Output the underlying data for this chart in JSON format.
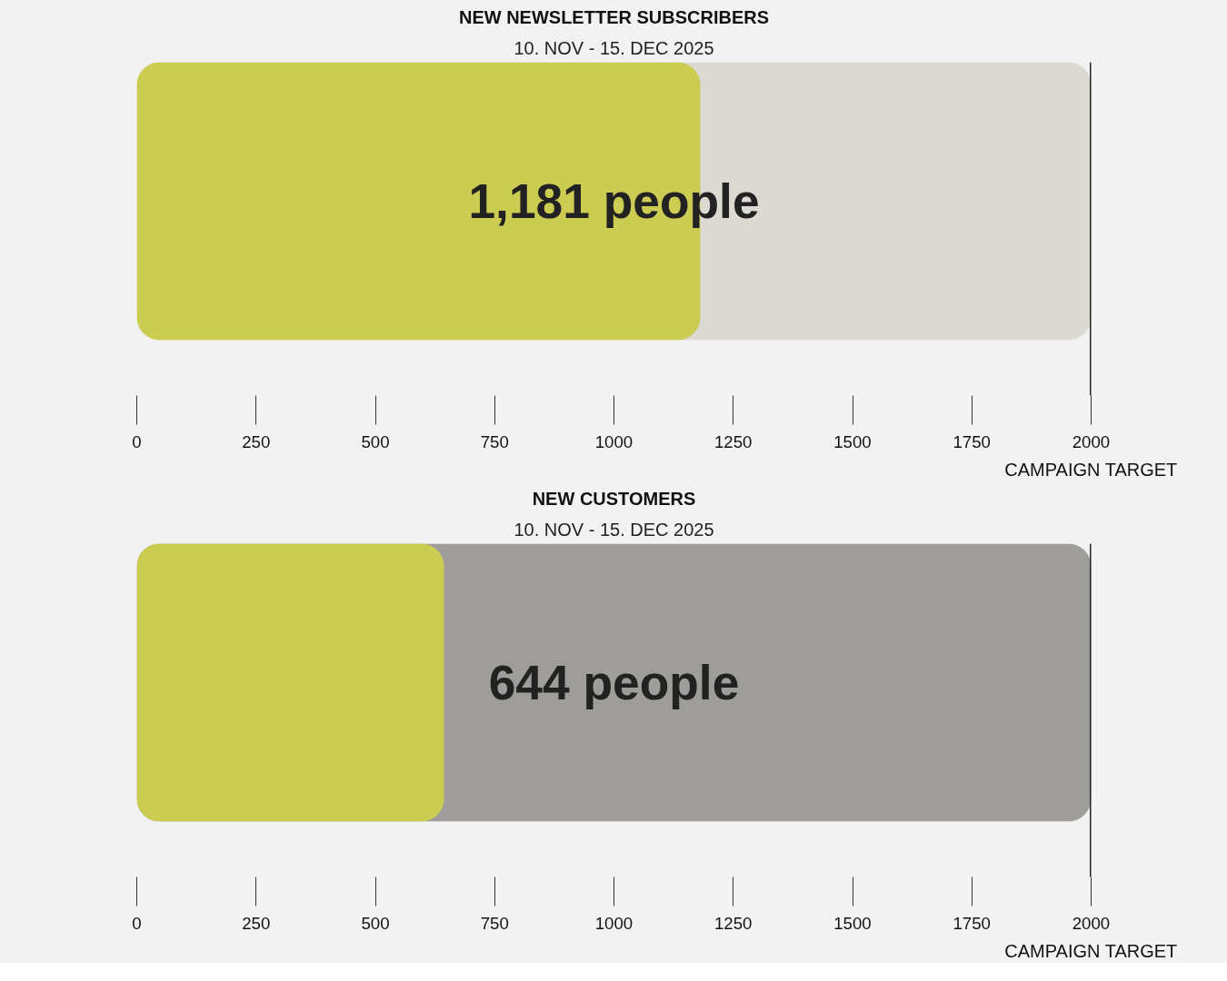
{
  "chart_data": [
    {
      "type": "bar",
      "orientation": "horizontal",
      "title": "NEW NEWSLETTER SUBSCRIBERS",
      "subtitle": "10. NOV - 15. DEC 2025",
      "categories": [
        null
      ],
      "values": [
        1181
      ],
      "colors": [
        "#cccc52"
      ],
      "value_labels": [
        "1,181 people"
      ],
      "xlim": [
        0,
        2000
      ],
      "xticks": [
        0,
        250,
        500,
        750,
        1000,
        1250,
        1500,
        1750,
        2000
      ],
      "tick_labels": "x",
      "bands": [
        {
          "axis": "x",
          "from": 0,
          "to": 2000,
          "color": "#dcd9d2"
        }
      ],
      "ref_lines": [
        {
          "axis": "x",
          "value": 2000,
          "label": "CAMPAIGN TARGET",
          "color": "#222222"
        }
      ]
    },
    {
      "type": "bar",
      "orientation": "horizontal",
      "title": "NEW CUSTOMERS",
      "subtitle": "10. NOV - 15. DEC 2025",
      "categories": [
        null
      ],
      "values": [
        644
      ],
      "colors": [
        "#cccc52"
      ],
      "value_labels": [
        "644 people"
      ],
      "xlim": [
        0,
        2000
      ],
      "xticks": [
        0,
        250,
        500,
        750,
        1000,
        1250,
        1500,
        1750,
        2000
      ],
      "tick_labels": "x",
      "bands": [
        {
          "axis": "x",
          "from": 0,
          "to": 2000,
          "color": "#9e9d99"
        }
      ],
      "ref_lines": [
        {
          "axis": "x",
          "value": 2000,
          "label": "CAMPAIGN TARGET",
          "color": "#222222"
        }
      ]
    }
  ]
}
